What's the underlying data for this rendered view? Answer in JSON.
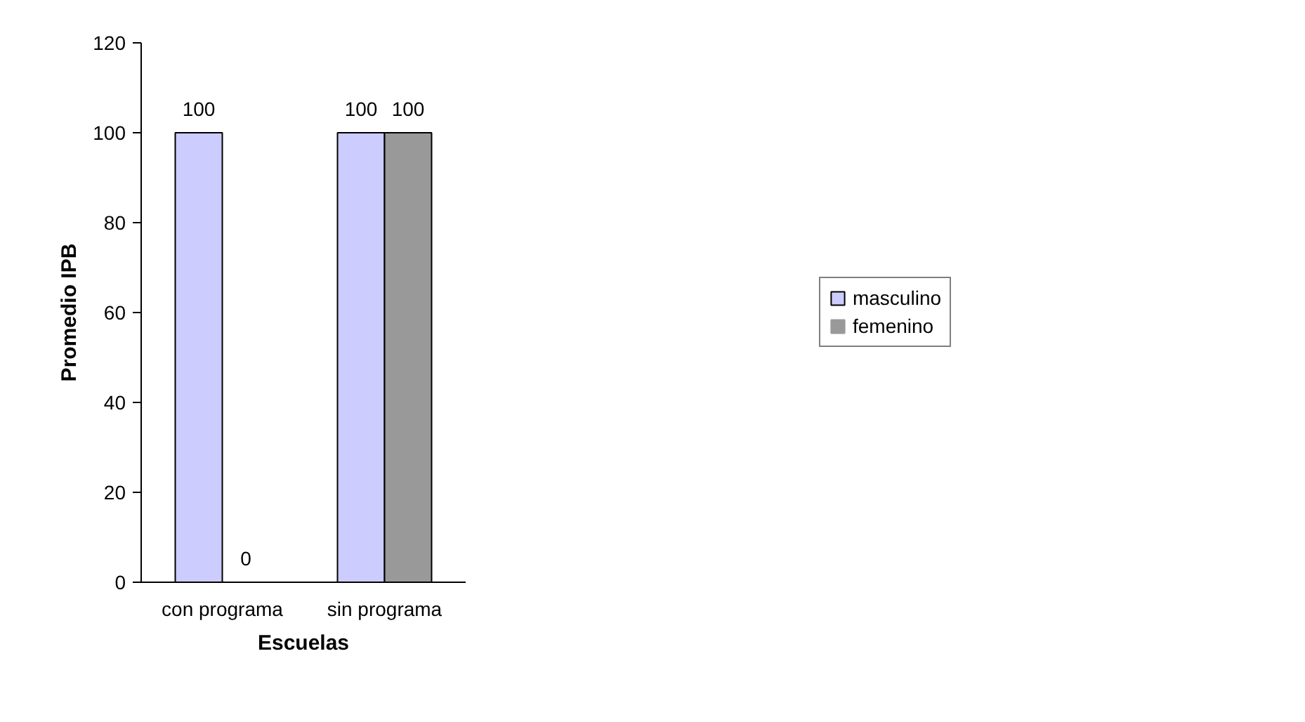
{
  "chart_data": {
    "type": "bar",
    "xlabel": "Escuelas",
    "ylabel": "Promedio IPB",
    "categories": [
      "con programa",
      "sin programa"
    ],
    "series": [
      {
        "name": "masculino",
        "color": "#ccccff",
        "values": [
          100,
          100
        ]
      },
      {
        "name": "femenino",
        "color": "#999999",
        "values": [
          0,
          100
        ]
      }
    ],
    "ylim": [
      0,
      120
    ],
    "yticks": [
      0,
      20,
      40,
      60,
      80,
      100,
      120
    ],
    "grid": false,
    "legend": "right",
    "data_labels": true
  }
}
